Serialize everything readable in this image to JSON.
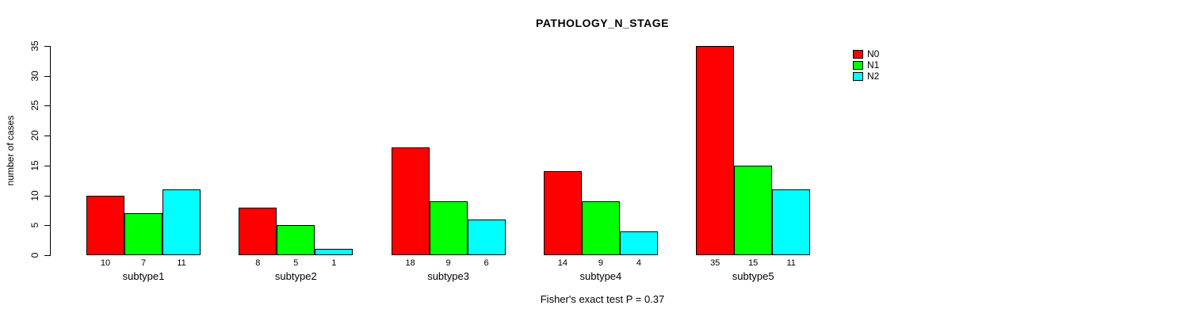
{
  "chart_data": {
    "type": "bar",
    "title": "PATHOLOGY_N_STAGE",
    "ylabel": "number of cases",
    "xlabel": "",
    "ylim": [
      0,
      35
    ],
    "yticks": [
      0,
      5,
      10,
      15,
      20,
      25,
      30,
      35
    ],
    "grid": false,
    "legend_position": "top-right",
    "categories": [
      "subtype1",
      "subtype2",
      "subtype3",
      "subtype4",
      "subtype5"
    ],
    "series": [
      {
        "name": "N0",
        "color": "#FF0000",
        "values": [
          10,
          8,
          18,
          14,
          35
        ]
      },
      {
        "name": "N1",
        "color": "#00FF00",
        "values": [
          7,
          5,
          9,
          9,
          15
        ]
      },
      {
        "name": "N2",
        "color": "#00FFFF",
        "values": [
          11,
          1,
          6,
          4,
          11
        ]
      }
    ],
    "bar_value_labels_shown": true,
    "annotation": "Fisher's exact test P = 0.37"
  }
}
